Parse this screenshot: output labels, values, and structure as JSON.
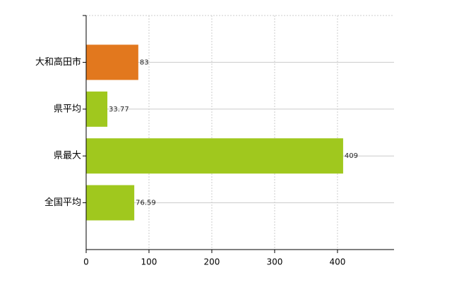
{
  "chart_data": {
    "type": "bar",
    "orientation": "horizontal",
    "categories": [
      "大和高田市",
      "県平均",
      "県最大",
      "全国平均"
    ],
    "values": [
      83,
      33.77,
      409,
      76.59
    ],
    "colors": [
      "#e2781e",
      "#a0c81e",
      "#a0c81e",
      "#a0c81e"
    ],
    "xlim": [
      0,
      490
    ],
    "xticks": [
      0,
      100,
      200,
      300,
      400
    ],
    "grid": true
  }
}
